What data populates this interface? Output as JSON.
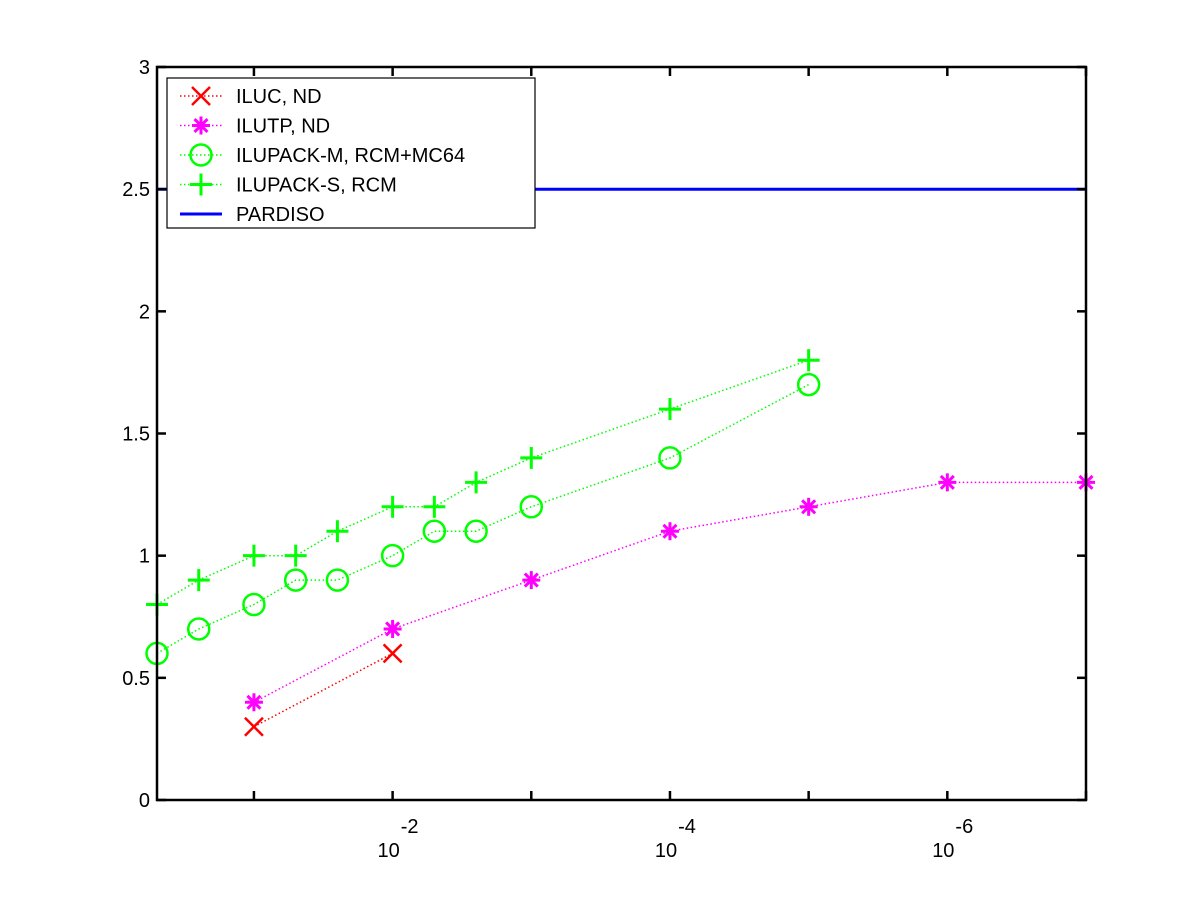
{
  "chart_data": {
    "type": "line",
    "x_scale": "log",
    "x_reversed": true,
    "xlim": [
      0.5,
      1e-07
    ],
    "ylim": [
      0,
      3
    ],
    "grid": false,
    "legend_position": "top-left",
    "y_ticks": [
      0,
      0.5,
      1,
      1.5,
      2,
      2.5,
      3
    ],
    "y_tick_labels": [
      "0",
      "0.5",
      "1",
      "1.5",
      "2",
      "2.5",
      "3"
    ],
    "x_ticks": [
      {
        "value": 0.01,
        "base": "10",
        "exponent": "-2"
      },
      {
        "value": 0.0001,
        "base": "10",
        "exponent": "-4"
      },
      {
        "value": 1e-06,
        "base": "10",
        "exponent": "-6"
      }
    ],
    "x_minor_ticks": [
      0.1,
      0.001,
      1e-05,
      1e-07
    ],
    "series": [
      {
        "name": "ILUC,  ND",
        "color": "#ff0000",
        "marker": "x",
        "x": [
          0.1,
          0.01
        ],
        "y": [
          0.3,
          0.6
        ]
      },
      {
        "name": "ILUTP,  ND",
        "color": "#ff00ff",
        "marker": "asterisk",
        "x": [
          0.1,
          0.01,
          0.001,
          0.0001,
          1e-05,
          1e-06,
          1e-07
        ],
        "y": [
          0.4,
          0.7,
          0.9,
          1.1,
          1.2,
          1.3,
          1.3
        ]
      },
      {
        "name": "ILUPACK-M, RCM+MC64",
        "color": "#00ff00",
        "marker": "circle",
        "x": [
          0.5,
          0.25,
          0.1,
          0.05,
          0.025,
          0.01,
          0.005,
          0.0025,
          0.001,
          0.0001,
          1e-05
        ],
        "y": [
          0.6,
          0.7,
          0.8,
          0.9,
          0.9,
          1.0,
          1.1,
          1.1,
          1.2,
          1.4,
          1.7
        ]
      },
      {
        "name": "ILUPACK-S, RCM",
        "color": "#00ff00",
        "marker": "plus",
        "x": [
          0.5,
          0.25,
          0.1,
          0.05,
          0.025,
          0.01,
          0.005,
          0.0025,
          0.001,
          0.0001,
          1e-05
        ],
        "y": [
          0.8,
          0.9,
          1.0,
          1.0,
          1.1,
          1.2,
          1.2,
          1.3,
          1.4,
          1.6,
          1.8
        ]
      },
      {
        "name": "PARDISO",
        "color": "#0000ff",
        "marker": "line",
        "x": [
          0.5,
          1e-07
        ],
        "y": [
          2.5,
          2.5
        ]
      }
    ]
  }
}
